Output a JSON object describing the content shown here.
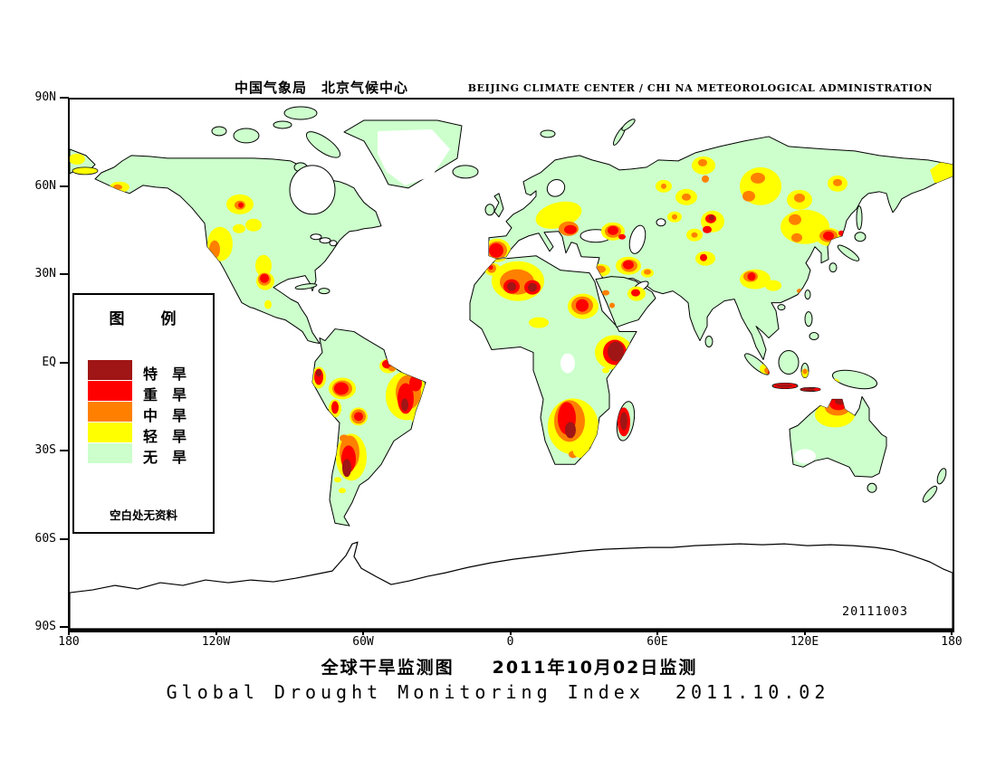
{
  "header": {
    "cn": "中国气象局　北京气候中心",
    "en": "BEIJING CLIMATE CENTER / CHI NA METEOROLOGICAL ADMINISTRATION"
  },
  "axes": {
    "lat_labels": [
      "90N",
      "60N",
      "30N",
      "EQ",
      "30S",
      "60S",
      "90S"
    ],
    "lon_labels": [
      "180",
      "120W",
      "60W",
      "0",
      "60E",
      "120E",
      "180"
    ]
  },
  "legend": {
    "title": "图　　例",
    "items": [
      {
        "label": "特　旱",
        "key": "extreme",
        "color": "#A01515"
      },
      {
        "label": "重　旱",
        "key": "severe",
        "color": "#FF0000"
      },
      {
        "label": "中　旱",
        "key": "moderate",
        "color": "#FF8000"
      },
      {
        "label": "轻　旱",
        "key": "light",
        "color": "#FFFF00"
      },
      {
        "label": "无　旱",
        "key": "none",
        "color": "#CCFFCC"
      }
    ],
    "note": "空白处无资料"
  },
  "map": {
    "datestamp": "20111003"
  },
  "footer": {
    "title_cn": "全球干旱监测图　　2011年10月02日监测",
    "title_en": "Global Drought Monitoring Index  2011.10.02"
  },
  "colors": {
    "extreme": "#A01515",
    "severe": "#FF0000",
    "moderate": "#FF8000",
    "light": "#FFFF00",
    "none": "#CCFFCC",
    "ocean": "#FFFFFF",
    "coastline": "#000000"
  }
}
